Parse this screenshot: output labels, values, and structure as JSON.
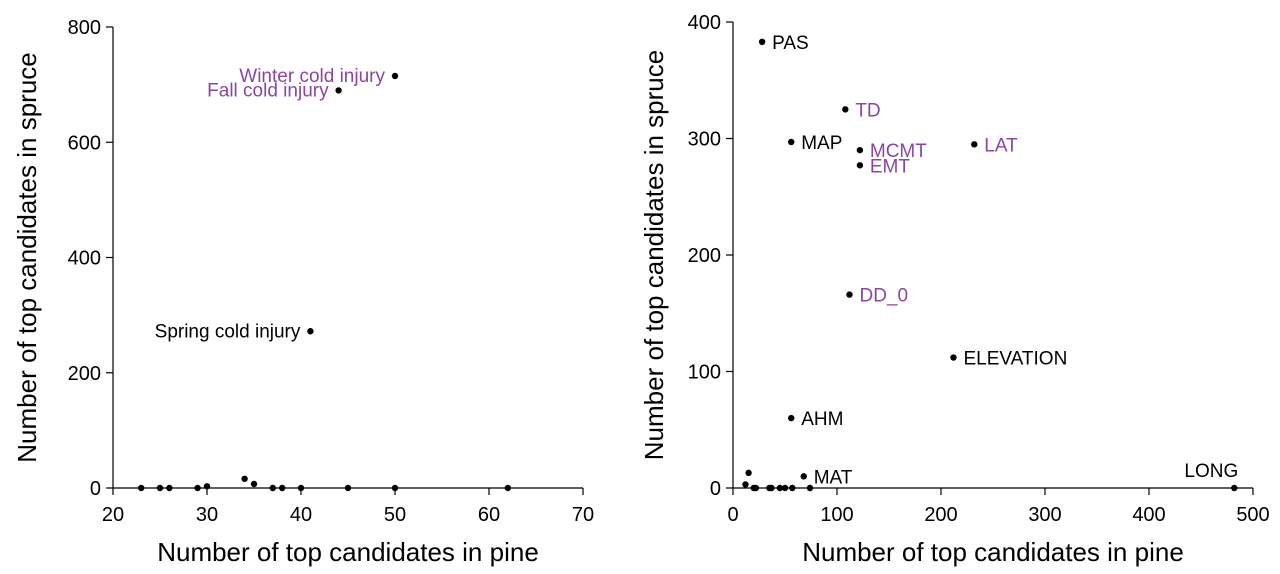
{
  "colors": {
    "highlight": "#8b45a6",
    "default": "#000000"
  },
  "chart_data": [
    {
      "type": "scatter",
      "title": "",
      "xlabel": "Number of top candidates in pine",
      "ylabel": "Number of top candidates in spruce",
      "xlim": [
        20,
        70
      ],
      "ylim": [
        0,
        800
      ],
      "xticks": [
        20,
        30,
        40,
        50,
        60,
        70
      ],
      "yticks": [
        0,
        200,
        400,
        600,
        800
      ],
      "grid": false,
      "points": [
        {
          "x": 50,
          "y": 715,
          "label": "Winter cold injury",
          "color": "highlight",
          "anchor": "end"
        },
        {
          "x": 44,
          "y": 690,
          "label": "Fall cold injury",
          "color": "highlight",
          "anchor": "end"
        },
        {
          "x": 41,
          "y": 272,
          "label": "Spring cold injury",
          "color": "default",
          "anchor": "end"
        },
        {
          "x": 23,
          "y": 0
        },
        {
          "x": 25,
          "y": 0
        },
        {
          "x": 26,
          "y": 0
        },
        {
          "x": 29,
          "y": 0
        },
        {
          "x": 30,
          "y": 3
        },
        {
          "x": 34,
          "y": 16
        },
        {
          "x": 35,
          "y": 7
        },
        {
          "x": 37,
          "y": 0
        },
        {
          "x": 38,
          "y": 0
        },
        {
          "x": 40,
          "y": 0
        },
        {
          "x": 45,
          "y": 0
        },
        {
          "x": 50,
          "y": 0
        },
        {
          "x": 62,
          "y": 0
        }
      ]
    },
    {
      "type": "scatter",
      "title": "",
      "xlabel": "Number of top candidates in pine",
      "ylabel": "Number of top candidates in spruce",
      "xlim": [
        0,
        500
      ],
      "ylim": [
        0,
        400
      ],
      "xticks": [
        0,
        100,
        200,
        300,
        400,
        500
      ],
      "yticks": [
        0,
        100,
        200,
        300,
        400
      ],
      "grid": false,
      "points": [
        {
          "x": 28,
          "y": 383,
          "label": "PAS",
          "color": "default",
          "anchor": "start"
        },
        {
          "x": 108,
          "y": 325,
          "label": "TD",
          "color": "highlight",
          "anchor": "start"
        },
        {
          "x": 56,
          "y": 297,
          "label": "MAP",
          "color": "default",
          "anchor": "start"
        },
        {
          "x": 122,
          "y": 290,
          "label": "MCMT",
          "color": "highlight",
          "anchor": "start"
        },
        {
          "x": 122,
          "y": 277,
          "label": "EMT",
          "color": "highlight",
          "anchor": "start"
        },
        {
          "x": 232,
          "y": 295,
          "label": "LAT",
          "color": "highlight",
          "anchor": "start"
        },
        {
          "x": 112,
          "y": 166,
          "label": "DD_0",
          "color": "highlight",
          "anchor": "start"
        },
        {
          "x": 212,
          "y": 112,
          "label": "ELEVATION",
          "color": "default",
          "anchor": "start"
        },
        {
          "x": 56,
          "y": 60,
          "label": "AHM",
          "color": "default",
          "anchor": "start"
        },
        {
          "x": 68,
          "y": 10,
          "label": "MAT",
          "color": "default",
          "anchor": "start"
        },
        {
          "x": 482,
          "y": 0,
          "label": "LONG",
          "color": "default",
          "anchor": "end-above"
        },
        {
          "x": 15,
          "y": 13
        },
        {
          "x": 12,
          "y": 3
        },
        {
          "x": 20,
          "y": 0
        },
        {
          "x": 22,
          "y": 0
        },
        {
          "x": 35,
          "y": 0
        },
        {
          "x": 37,
          "y": 0
        },
        {
          "x": 45,
          "y": 0
        },
        {
          "x": 50,
          "y": 0
        },
        {
          "x": 57,
          "y": 0
        },
        {
          "x": 74,
          "y": 0
        }
      ]
    }
  ]
}
